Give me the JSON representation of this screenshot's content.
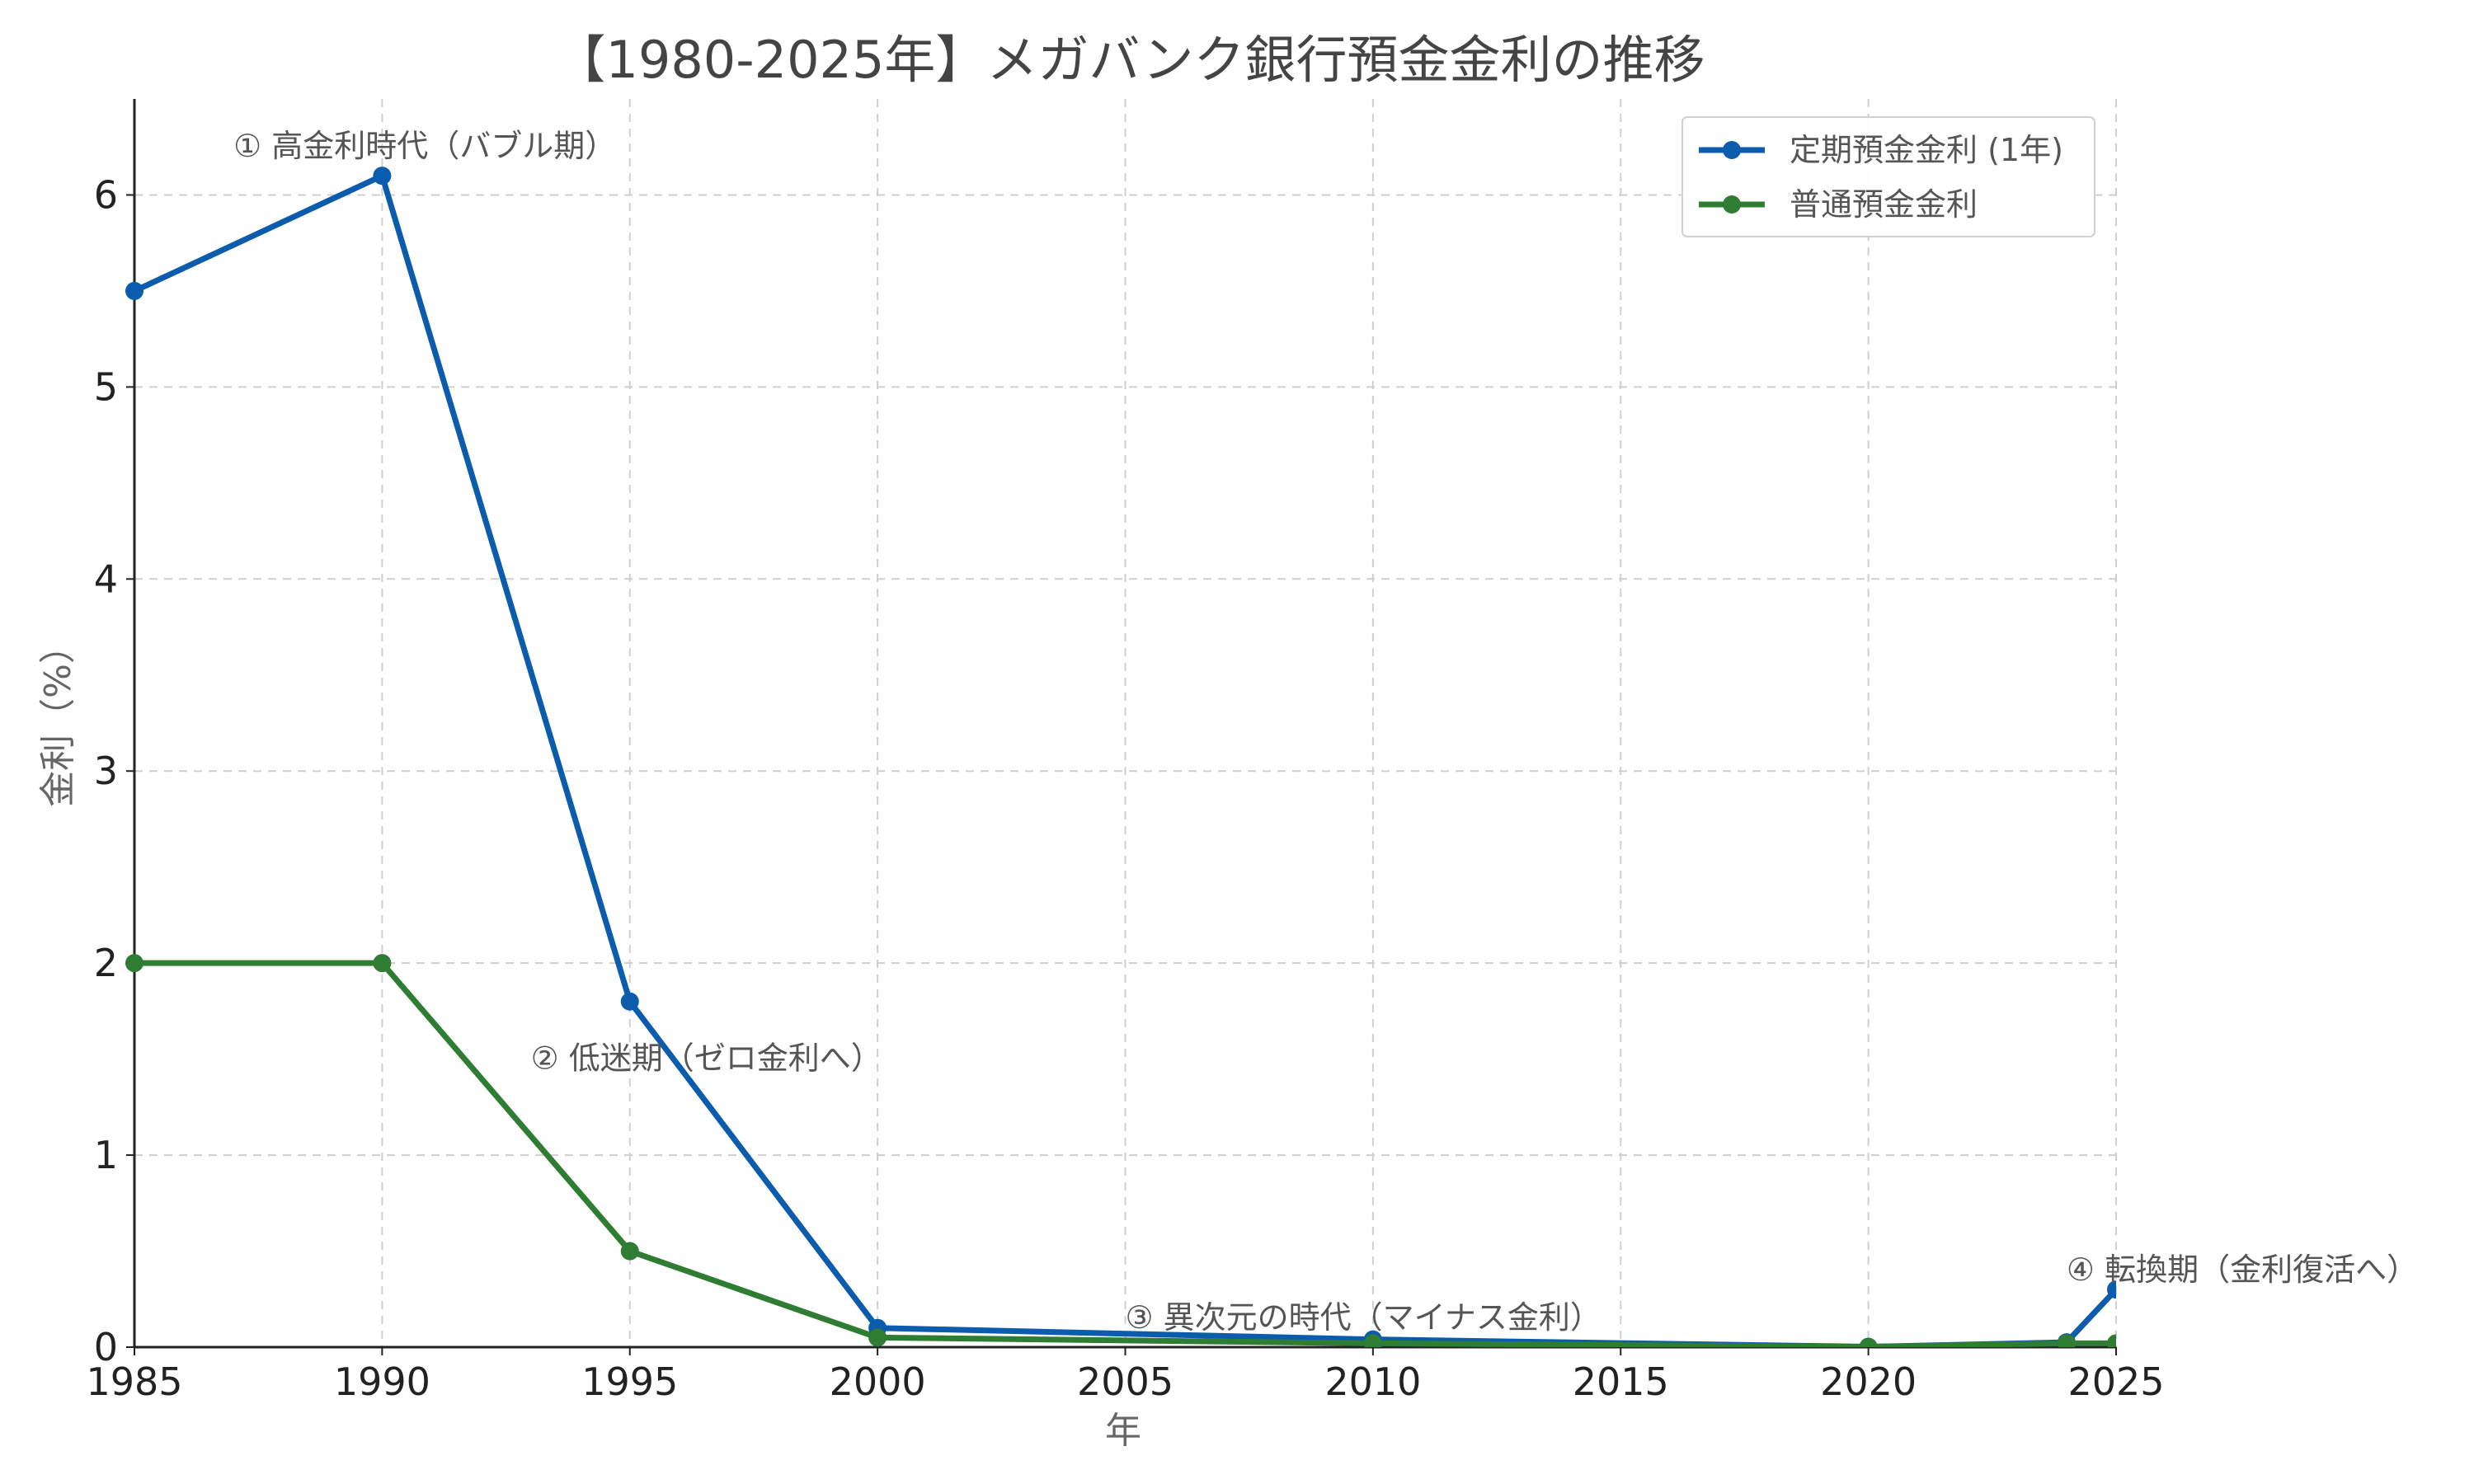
{
  "chart_data": {
    "type": "line",
    "title": "【1980-2025年】メガバンク銀行預金金利の推移",
    "xlabel": "年",
    "ylabel": "金利（%）",
    "xlim": [
      1985,
      2025
    ],
    "ylim": [
      0,
      6.5
    ],
    "x_ticks": [
      "1985",
      "1990",
      "1995",
      "2000",
      "2005",
      "2010",
      "2015",
      "2020",
      "2025"
    ],
    "y_ticks": [
      "0",
      "1",
      "2",
      "3",
      "4",
      "5",
      "6"
    ],
    "grid": true,
    "legend_position": "top-right",
    "series": [
      {
        "name": "定期預金金利 (1年)",
        "color": "#0b5cad",
        "x": [
          1985,
          1990,
          1995,
          2000,
          2010,
          2020,
          2024,
          2025
        ],
        "y": [
          5.5,
          6.1,
          1.8,
          0.1,
          0.04,
          0.002,
          0.025,
          0.3
        ]
      },
      {
        "name": "普通預金金利",
        "color": "#2e7d32",
        "x": [
          1985,
          1990,
          1995,
          2000,
          2010,
          2020,
          2024,
          2025
        ],
        "y": [
          2.0,
          2.0,
          0.5,
          0.05,
          0.02,
          0.001,
          0.02,
          0.02
        ]
      }
    ],
    "annotations": [
      {
        "text": "① 高金利時代（バブル期）",
        "x": 1987,
        "y": 6.25
      },
      {
        "text": "② 低迷期（ゼロ金利へ）",
        "x": 1993,
        "y": 1.5
      },
      {
        "text": "③ 異次元の時代（マイナス金利）",
        "x": 2005,
        "y": 0.15
      },
      {
        "text": "④ 転換期（金利復活へ）",
        "x": 2024,
        "y": 0.4
      }
    ]
  }
}
